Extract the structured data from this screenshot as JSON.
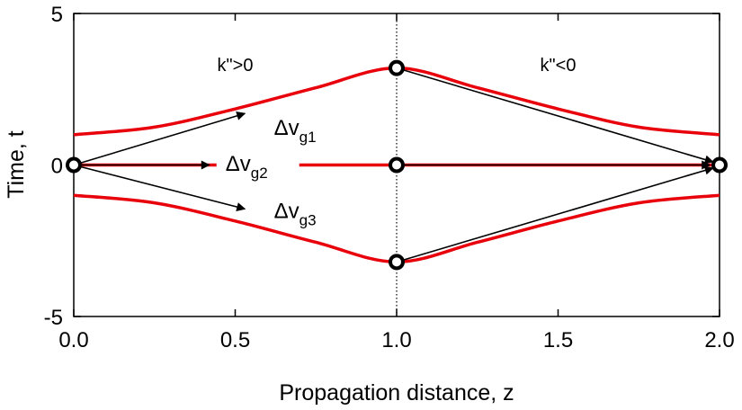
{
  "chart_data": {
    "type": "line",
    "xlabel": "Propagation distance, z",
    "ylabel": "Time, t",
    "xlim": [
      0.0,
      2.0
    ],
    "ylim": [
      -5,
      5
    ],
    "x_ticks": [
      "0.0",
      "0.5",
      "1.0",
      "1.5",
      "2.0"
    ],
    "y_ticks": [
      "5",
      "0",
      "-5"
    ],
    "grid": false,
    "colors": {
      "curve": "#e8000b",
      "arrow": "#000000",
      "marker": "#000000"
    },
    "series": [
      {
        "x": [
          0.0,
          0.25,
          0.5,
          0.75,
          1.0,
          1.25,
          1.5,
          1.75,
          2.0
        ],
        "y": [
          1.0,
          1.25,
          1.85,
          2.55,
          3.2,
          2.55,
          1.85,
          1.25,
          1.0
        ]
      },
      {
        "x": [
          0.0,
          0.45,
          0.7,
          1.0,
          1.5,
          2.0
        ],
        "y": [
          0.0,
          0.0,
          0.0,
          0.0,
          0.0,
          0.0
        ]
      },
      {
        "x": [
          0.0,
          0.25,
          0.5,
          0.75,
          1.0,
          1.25,
          1.5,
          1.75,
          2.0
        ],
        "y": [
          -1.0,
          -1.25,
          -1.85,
          -2.55,
          -3.2,
          -2.55,
          -1.85,
          -1.25,
          -1.0
        ]
      }
    ],
    "markers": [
      {
        "x": 0.0,
        "y": 0.0
      },
      {
        "x": 1.0,
        "y": 3.2
      },
      {
        "x": 1.0,
        "y": 0.0
      },
      {
        "x": 1.0,
        "y": -3.2
      },
      {
        "x": 2.0,
        "y": 0.0
      }
    ],
    "arrows": [
      {
        "x0": 0.0,
        "y0": 0.0,
        "x1": 0.53,
        "y1": 1.7
      },
      {
        "x0": 0.0,
        "y0": 0.0,
        "x1": 0.42,
        "y1": 0.0
      },
      {
        "x0": 0.0,
        "y0": 0.0,
        "x1": 0.53,
        "y1": -1.45
      },
      {
        "x0": 1.0,
        "y0": 3.2,
        "x1": 1.98,
        "y1": 0.1
      },
      {
        "x0": 1.0,
        "y0": 0.0,
        "x1": 1.97,
        "y1": 0.0
      },
      {
        "x0": 1.0,
        "y0": -3.2,
        "x1": 1.98,
        "y1": -0.1
      }
    ],
    "vertical_line": {
      "x": 1.0
    },
    "annotations": [
      {
        "text": "k\">0",
        "x": 0.5,
        "y": 3.1
      },
      {
        "text": "k\"<0",
        "x": 1.5,
        "y": 3.1
      }
    ],
    "dv_labels": [
      {
        "sym": "Δv",
        "sub": "g1",
        "x": 0.62,
        "y": 1.0
      },
      {
        "sym": "Δv",
        "sub": "g2",
        "x": 0.47,
        "y": -0.2
      },
      {
        "sym": "Δv",
        "sub": "g3",
        "x": 0.62,
        "y": -1.75
      }
    ]
  }
}
